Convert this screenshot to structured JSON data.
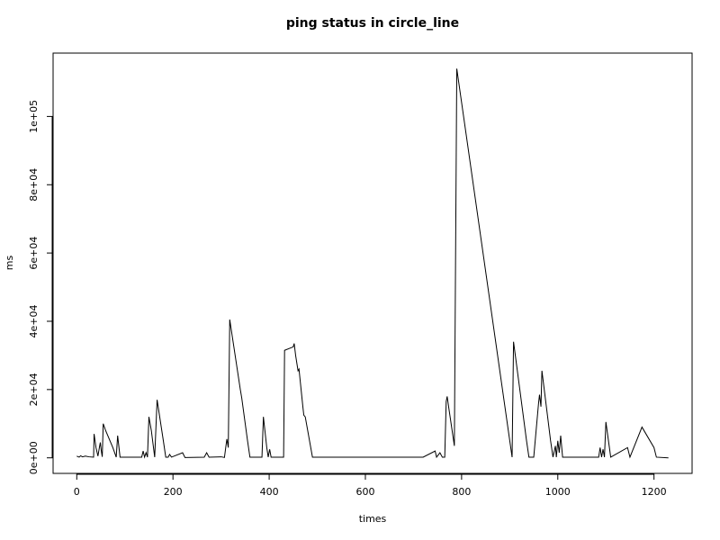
{
  "chart_data": {
    "type": "line",
    "title": "ping status in circle_line",
    "x_label": "times",
    "y_label": "ms",
    "x": [
      0,
      5,
      8,
      12,
      18,
      25,
      35,
      36,
      40,
      44,
      47,
      49,
      51,
      53,
      55,
      60,
      75,
      82,
      85,
      90,
      135,
      138,
      141,
      144,
      147,
      150,
      155,
      162,
      167,
      180,
      185,
      190,
      193,
      197,
      220,
      225,
      265,
      270,
      275,
      300,
      307,
      312,
      315,
      318,
      340,
      343,
      355,
      360,
      385,
      388,
      395,
      398,
      401,
      404,
      430,
      432,
      450,
      452,
      455,
      460,
      462,
      470,
      472,
      475,
      490,
      720,
      745,
      748,
      755,
      760,
      765,
      768,
      770,
      773,
      785,
      790,
      905,
      908,
      935,
      940,
      950,
      960,
      962,
      965,
      967,
      985,
      990,
      995,
      997,
      1000,
      1003,
      1006,
      1010,
      1085,
      1088,
      1091,
      1094,
      1097,
      1100,
      1110,
      1145,
      1150,
      1175,
      1200,
      1205,
      1230
    ],
    "series": [
      {
        "name": "ms",
        "color": "#000000",
        "values": [
          500,
          200,
          600,
          300,
          500,
          300,
          200,
          7000,
          3000,
          500,
          3000,
          4500,
          2000,
          300,
          10000,
          8000,
          3000,
          200,
          6500,
          200,
          200,
          2000,
          200,
          1500,
          200,
          12000,
          8000,
          200,
          17000,
          5000,
          200,
          200,
          1000,
          200,
          1500,
          100,
          200,
          1500,
          200,
          300,
          100,
          5500,
          3000,
          40500,
          20000,
          17500,
          5000,
          200,
          200,
          12000,
          3000,
          200,
          2500,
          200,
          200,
          31500,
          32500,
          33500,
          30000,
          25500,
          26000,
          15000,
          12500,
          12000,
          200,
          200,
          2000,
          200,
          1500,
          200,
          200,
          16500,
          18000,
          15000,
          3500,
          114000,
          200,
          34000,
          5000,
          200,
          200,
          16000,
          18500,
          15000,
          25500,
          5000,
          200,
          3500,
          200,
          5000,
          1500,
          6500,
          200,
          200,
          3000,
          200,
          2500,
          200,
          10500,
          200,
          3000,
          200,
          9000,
          3000,
          200,
          0
        ]
      }
    ],
    "xlim": [
      -49.2,
      1279.2
    ],
    "ylim": [
      -4560,
      118560
    ],
    "xticks": [
      0,
      200,
      400,
      600,
      800,
      1000,
      1200
    ],
    "yticks": [
      {
        "value": 0,
        "label": "0e+00"
      },
      {
        "value": 20000,
        "label": "2e+04"
      },
      {
        "value": 40000,
        "label": "4e+04"
      },
      {
        "value": 60000,
        "label": "6e+04"
      },
      {
        "value": 80000,
        "label": "8e+04"
      },
      {
        "value": 100000,
        "label": "1e+05"
      }
    ]
  }
}
